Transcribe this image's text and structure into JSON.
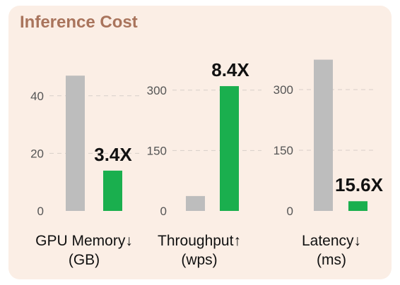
{
  "title": "Inference Cost",
  "colors": {
    "baseline": "#bdbdbd",
    "ours": "#1aaf4e",
    "title": "#a9745c",
    "panel": "#fbeee5"
  },
  "chart_data": [
    {
      "type": "bar",
      "xlabel": [
        "GPU Memory↓",
        "(GB)"
      ],
      "ylim": [
        0,
        50
      ],
      "yticks": [
        0,
        20,
        40
      ],
      "values": [
        47,
        14
      ],
      "ratio_label": "3.4X",
      "grid": "dashed"
    },
    {
      "type": "bar",
      "xlabel": [
        "Throughput↑",
        "(wps)"
      ],
      "ylim": [
        0,
        375
      ],
      "yticks": [
        0,
        150,
        300
      ],
      "values": [
        37,
        310
      ],
      "ratio_label": "8.4X",
      "grid": "dashed"
    },
    {
      "type": "bar",
      "xlabel": [
        "Latency↓",
        "(ms)"
      ],
      "ylim": [
        0,
        375
      ],
      "yticks": [
        0,
        150,
        300
      ],
      "values": [
        374,
        24
      ],
      "ratio_label": "15.6X",
      "grid": "dashed"
    }
  ]
}
